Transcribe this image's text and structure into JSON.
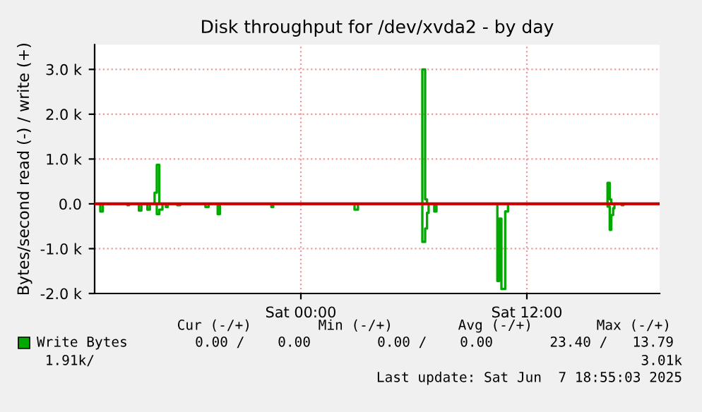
{
  "chart_data": {
    "type": "step",
    "title": "Disk throughput for /dev/xvda2 - by day",
    "ylabel": "Bytes/second read (-) / write (+)",
    "xlim": [
      "2025-06-06T13:03",
      "2025-06-07T19:03"
    ],
    "xticks": [
      {
        "value": "2025-06-07T00:00",
        "label": "Sat 00:00"
      },
      {
        "value": "2025-06-07T12:00",
        "label": "Sat 12:00"
      }
    ],
    "ylim": [
      -2000,
      3550
    ],
    "yticks": [
      {
        "value": -2000,
        "label": "-2.0 k"
      },
      {
        "value": -1000,
        "label": "-1.0 k"
      },
      {
        "value": 0,
        "label": "0.0"
      },
      {
        "value": 1000,
        "label": "1.0 k"
      },
      {
        "value": 2000,
        "label": "2.0 k"
      },
      {
        "value": 3000,
        "label": "3.0 k"
      }
    ],
    "grid": true,
    "legend": "bottom left",
    "line_style": "solid",
    "marker": "none",
    "ref_lines": [
      {
        "axis": "y",
        "value": 0,
        "color": "#cc0000"
      }
    ],
    "series": [
      {
        "color": "#00a800",
        "x": [
          "2025-06-06T13:03",
          "2025-06-06T13:21",
          "2025-06-06T13:29",
          "2025-06-06T14:47",
          "2025-06-06T14:53",
          "2025-06-06T15:24",
          "2025-06-06T15:32",
          "2025-06-06T15:51",
          "2025-06-06T15:59",
          "2025-06-06T16:21",
          "2025-06-06T16:29",
          "2025-06-06T16:39",
          "2025-06-06T16:50",
          "2025-06-06T16:56",
          "2025-06-06T17:26",
          "2025-06-06T17:36",
          "2025-06-06T18:56",
          "2025-06-06T19:06",
          "2025-06-06T19:35",
          "2025-06-06T19:42",
          "2025-06-06T22:26",
          "2025-06-06T22:32",
          "2025-06-07T02:51",
          "2025-06-07T03:02",
          "2025-06-07T06:27",
          "2025-06-07T06:36",
          "2025-06-07T06:42",
          "2025-06-07T06:47",
          "2025-06-07T07:05",
          "2025-06-07T07:12",
          "2025-06-07T10:26",
          "2025-06-07T10:32",
          "2025-06-07T10:39",
          "2025-06-07T10:51",
          "2025-06-07T11:00",
          "2025-06-07T16:17",
          "2025-06-07T16:24",
          "2025-06-07T16:29",
          "2025-06-07T16:35",
          "2025-06-07T16:39",
          "2025-06-07T17:02",
          "2025-06-07T17:08",
          "2025-06-07T19:03"
        ],
        "values": [
          0,
          -170,
          0,
          -30,
          0,
          -150,
          0,
          -130,
          0,
          -230,
          -130,
          0,
          -70,
          0,
          -30,
          0,
          -70,
          0,
          -230,
          0,
          -70,
          0,
          -130,
          0,
          -850,
          -550,
          -200,
          0,
          -170,
          0,
          -1720,
          -330,
          -1900,
          -170,
          0,
          -60,
          -580,
          -250,
          -100,
          0,
          -30,
          0,
          0
        ]
      },
      {
        "name": "Write Bytes",
        "color": "#00a800",
        "x": [
          "2025-06-06T13:03",
          "2025-06-06T16:14",
          "2025-06-06T16:21",
          "2025-06-06T16:29",
          "2025-06-07T06:27",
          "2025-06-07T06:36",
          "2025-06-07T06:42",
          "2025-06-07T16:17",
          "2025-06-07T16:24",
          "2025-06-07T16:29",
          "2025-06-07T19:03"
        ],
        "values": [
          0,
          250,
          870,
          0,
          3000,
          100,
          0,
          470,
          100,
          0,
          0
        ]
      }
    ],
    "annotations": [
      "Cur (-/+)",
      "Min (-/+)",
      "Avg (-/+)",
      "Max (-/+)",
      "0.00 /    0.00",
      "0.00 /    0.00",
      "23.40 /   13.79",
      "1.91k/",
      "3.01k",
      "Last update: Sat Jun  7 18:55:03 2025"
    ]
  }
}
